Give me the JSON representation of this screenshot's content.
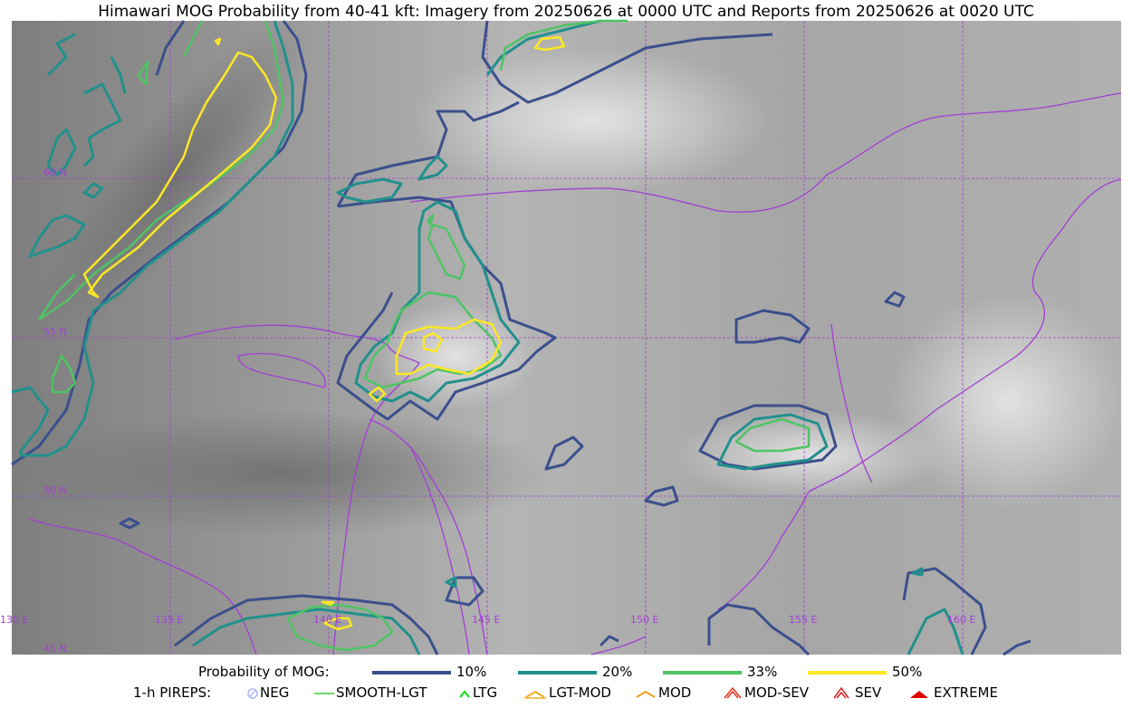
{
  "title": "Himawari MOG Probability from 40-41 kft: Imagery from 20250626 at 0000 UTC and Reports from 20250626 at 0020 UTC",
  "map": {
    "lat_labels": [
      "60 N",
      "55 N",
      "50 N",
      "45 N"
    ],
    "lon_labels": [
      "130 E",
      "135 E",
      "140 E",
      "145 E",
      "150 E",
      "155 E",
      "160 E"
    ],
    "colors": {
      "coast": "#a23fd4",
      "grid": "#9c3fd0",
      "level10": "#3b4f8c",
      "level20": "#21908c",
      "level33": "#4ec464",
      "level50": "#fde725"
    }
  },
  "legend": {
    "prob_title": "Probability of MOG:",
    "prob_items": [
      {
        "label": "10%",
        "color": "#3b4f8c"
      },
      {
        "label": "20%",
        "color": "#21908c"
      },
      {
        "label": "33%",
        "color": "#4ec464"
      },
      {
        "label": "50%",
        "color": "#fde725"
      }
    ],
    "pirep_title": "1-h PIREPS:",
    "pirep_items": [
      {
        "label": "NEG",
        "icon": "neg-circle-icon",
        "color": "#b4b4ff"
      },
      {
        "label": "SMOOTH-LGT",
        "icon": "smooth-line-icon",
        "color": "#32cd32"
      },
      {
        "label": "LTG",
        "icon": "ltg-caret-icon",
        "color": "#00e000"
      },
      {
        "label": "LGT-MOD",
        "icon": "lgt-mod-icon",
        "color": "#f0b020"
      },
      {
        "label": "MOD",
        "icon": "mod-caret-icon",
        "color": "#f0a020"
      },
      {
        "label": "MOD-SEV",
        "icon": "mod-sev-icon",
        "color": "#e83020"
      },
      {
        "label": "SEV",
        "icon": "sev-icon",
        "color": "#e02020"
      },
      {
        "label": "EXTREME",
        "icon": "extreme-icon",
        "color": "#e00000"
      }
    ]
  }
}
